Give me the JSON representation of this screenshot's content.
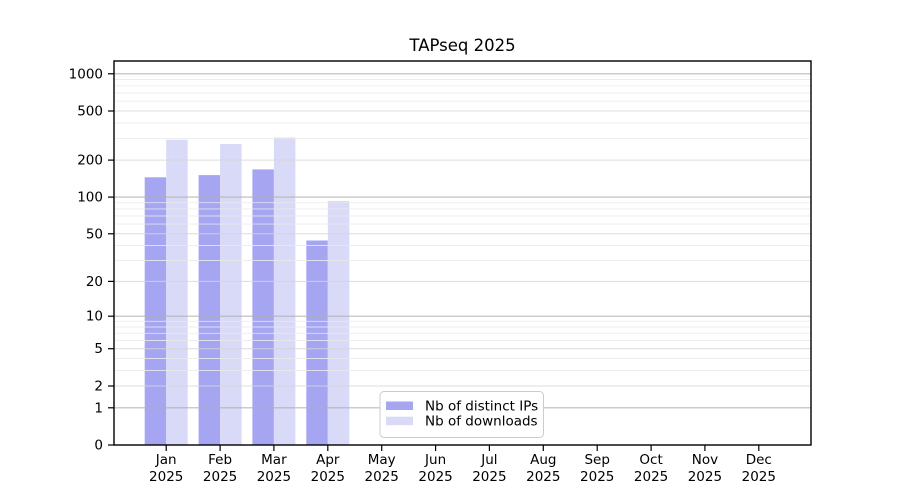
{
  "title": "TAPseq 2025",
  "colors": {
    "distinct_ips_bar": "#a5a5f2",
    "downloads_bar": "#d9d9f8",
    "grid_major": "#b0b0b0",
    "grid_mid": "#d6d6d6",
    "grid_minor": "#ebebeb",
    "axis": "#000000",
    "legend_border": "#cccccc",
    "legend_bg": "#ffffff"
  },
  "legend": {
    "items": [
      {
        "label": "Nb of distinct IPs",
        "color": "#a5a5f2"
      },
      {
        "label": "Nb of downloads",
        "color": "#d9d9f8"
      }
    ]
  },
  "chart_data": {
    "type": "bar",
    "title": "TAPseq 2025",
    "categories": [
      "Jan",
      "Feb",
      "Mar",
      "Apr",
      "May",
      "Jun",
      "Jul",
      "Aug",
      "Sep",
      "Oct",
      "Nov",
      "Dec"
    ],
    "year_label": "2025",
    "x_tick_labels": [
      [
        "Jan",
        "2025"
      ],
      [
        "Feb",
        "2025"
      ],
      [
        "Mar",
        "2025"
      ],
      [
        "Apr",
        "2025"
      ],
      [
        "May",
        "2025"
      ],
      [
        "Jun",
        "2025"
      ],
      [
        "Jul",
        "2025"
      ],
      [
        "Aug",
        "2025"
      ],
      [
        "Sep",
        "2025"
      ],
      [
        "Oct",
        "2025"
      ],
      [
        "Nov",
        "2025"
      ],
      [
        "Dec",
        "2025"
      ]
    ],
    "series": [
      {
        "name": "Nb of distinct IPs",
        "color": "#a5a5f2",
        "values": [
          145,
          151,
          168,
          44,
          0,
          0,
          0,
          0,
          0,
          0,
          0,
          0
        ]
      },
      {
        "name": "Nb of downloads",
        "color": "#d9d9f8",
        "values": [
          293,
          270,
          305,
          93,
          0,
          0,
          0,
          0,
          0,
          0,
          0,
          0
        ]
      }
    ],
    "xlabel": "",
    "ylabel": "",
    "yscale": "log1p",
    "y_ticks": [
      0,
      1,
      2,
      5,
      10,
      20,
      50,
      100,
      200,
      500,
      1000
    ],
    "y_minor_gridlines": [
      3,
      4,
      6,
      7,
      8,
      9,
      30,
      40,
      60,
      70,
      80,
      90,
      300,
      400,
      600,
      700,
      800,
      900
    ],
    "y_mid_gridlines": [
      2,
      5,
      20,
      50,
      200,
      500
    ],
    "y_major_gridlines": [
      1,
      10,
      100,
      1000
    ],
    "ylim": [
      0,
      1270
    ],
    "grid": true,
    "grid_on_top_of_bars": true,
    "legend_position": "inside lower-center"
  }
}
